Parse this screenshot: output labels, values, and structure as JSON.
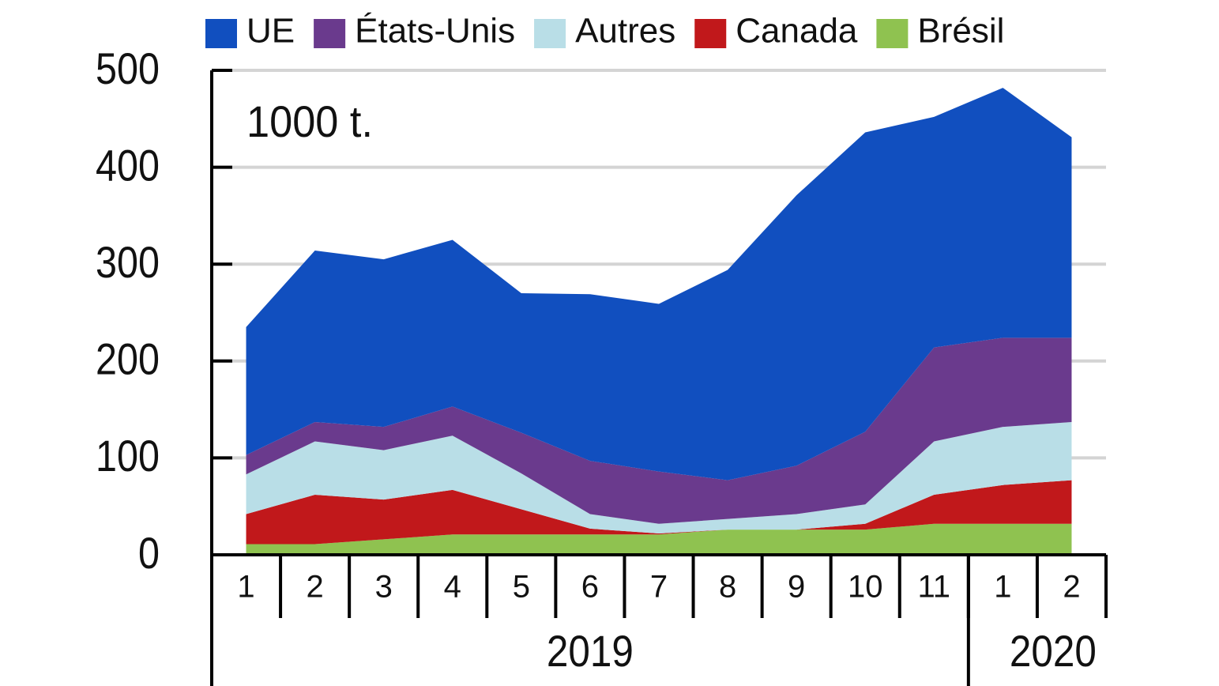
{
  "chart_data": {
    "type": "stacked_area",
    "annotation": "1000 t.",
    "category_groups": [
      {
        "label": "2019",
        "categories": [
          "1",
          "2",
          "3",
          "4",
          "5",
          "6",
          "7",
          "8",
          "9",
          "10",
          "11"
        ]
      },
      {
        "label": "2020",
        "categories": [
          "1",
          "2"
        ]
      }
    ],
    "series": [
      {
        "name": "UE",
        "color": "#114fbf",
        "values": [
          132,
          177,
          173,
          172,
          144,
          172,
          173,
          217,
          279,
          309,
          238,
          258,
          207
        ]
      },
      {
        "name": "États-Unis",
        "color": "#6a3a8d",
        "values": [
          20,
          20,
          24,
          30,
          42,
          55,
          54,
          40,
          50,
          75,
          97,
          92,
          87
        ]
      },
      {
        "name": "Autres",
        "color": "#b9dee7",
        "values": [
          41,
          55,
          51,
          56,
          37,
          15,
          10,
          11,
          16,
          20,
          55,
          60,
          60
        ]
      },
      {
        "name": "Canada",
        "color": "#c1181b",
        "values": [
          31,
          51,
          41,
          46,
          26,
          6,
          1,
          0,
          0,
          6,
          30,
          40,
          45
        ]
      },
      {
        "name": "Brésil",
        "color": "#8fc250",
        "values": [
          11,
          11,
          16,
          21,
          21,
          21,
          21,
          26,
          26,
          26,
          32,
          32,
          32
        ]
      }
    ],
    "ylim": [
      0,
      500
    ],
    "yticks": [
      0,
      100,
      200,
      300,
      400,
      500
    ],
    "grid": true
  }
}
